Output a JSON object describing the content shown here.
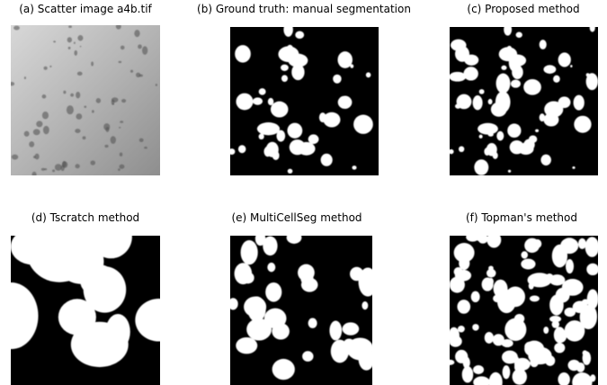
{
  "panels": [
    {
      "caption": "(a) Scatter image a4b.tif"
    },
    {
      "caption": "(b) Ground truth: manual segmentation"
    },
    {
      "caption": "(c) Proposed method"
    },
    {
      "caption": "(d) Tscratch method"
    },
    {
      "caption": "(e) MultiCellSeg method"
    },
    {
      "caption": "(f) Topman's method"
    }
  ]
}
